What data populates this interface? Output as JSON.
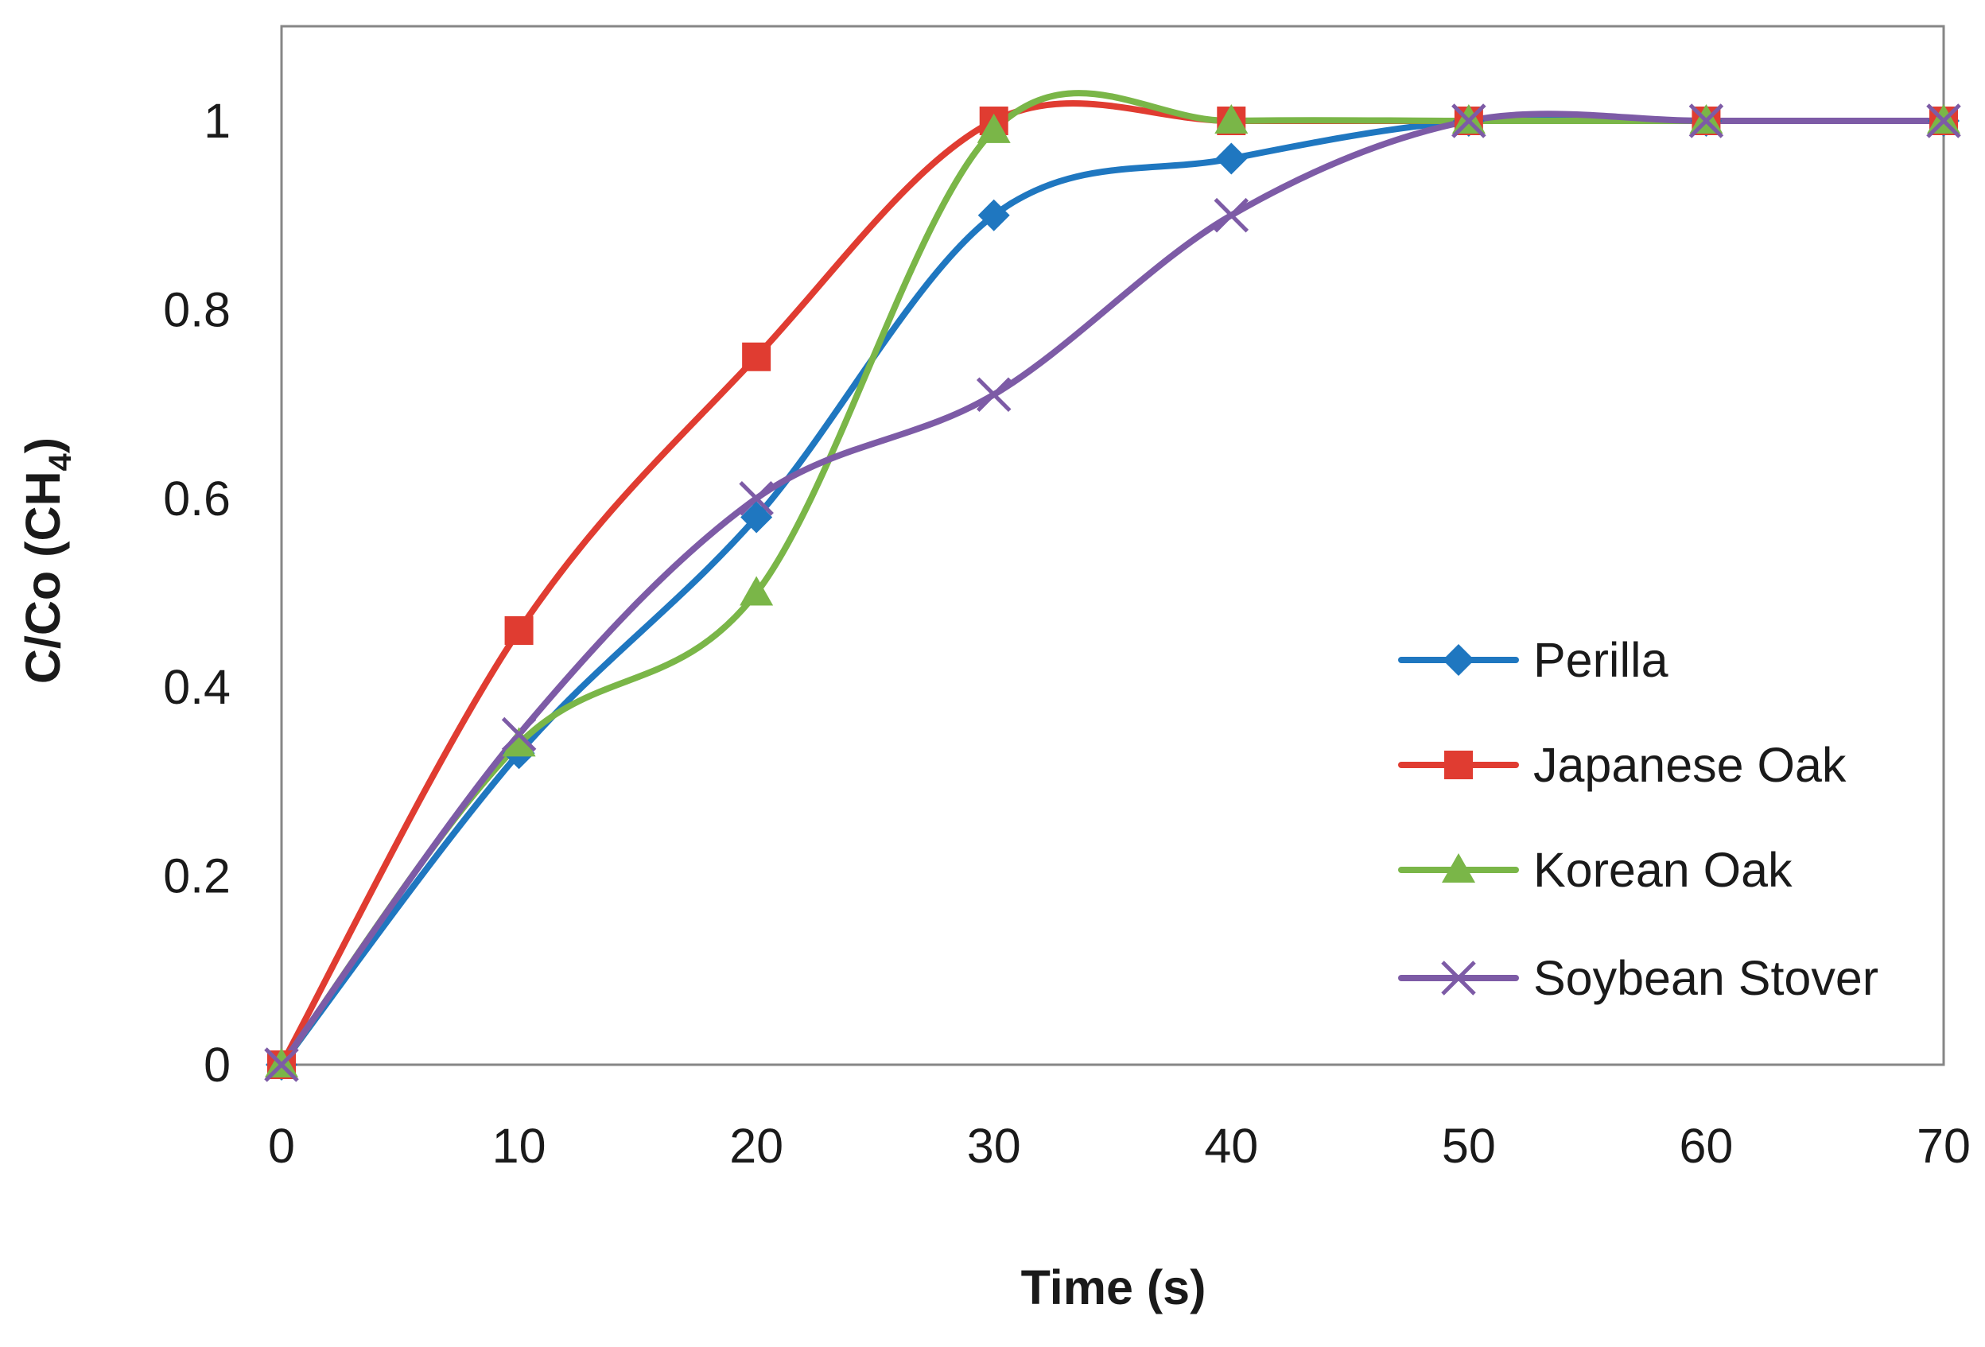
{
  "chart_data": {
    "type": "line",
    "smooth": true,
    "title": "",
    "xlabel": "Time (s)",
    "ylabel": "C/Co  (CH",
    "ylabel_subscript": "4",
    "ylabel_close": ")",
    "xlim": [
      0,
      70
    ],
    "ylim": [
      0,
      1.1
    ],
    "xticks": [
      0,
      10,
      20,
      30,
      40,
      50,
      60,
      70
    ],
    "yticks": [
      0,
      0.2,
      0.4,
      0.6,
      0.8,
      1
    ],
    "xtick_labels": [
      "0",
      "10",
      "20",
      "30",
      "40",
      "50",
      "60",
      "70"
    ],
    "ytick_labels": [
      "0",
      "0.2",
      "0.4",
      "0.6",
      "0.8",
      "1"
    ],
    "grid": false,
    "legend_position": "right",
    "x": [
      0,
      10,
      20,
      30,
      40,
      50,
      60,
      70
    ],
    "series": [
      {
        "name": "Perilla",
        "color": "#1f77c0",
        "marker": "diamond",
        "values": [
          0,
          0.33,
          0.58,
          0.9,
          0.96,
          1,
          1,
          1
        ]
      },
      {
        "name": "Japanese Oak",
        "color": "#e03c31",
        "marker": "square",
        "values": [
          0,
          0.46,
          0.75,
          1,
          1,
          1,
          1,
          1
        ]
      },
      {
        "name": "Korean Oak",
        "color": "#7ab648",
        "marker": "triangle",
        "values": [
          0,
          0.34,
          0.5,
          0.99,
          1,
          1,
          1,
          1
        ]
      },
      {
        "name": "Soybean Stover",
        "color": "#7d5ba6",
        "marker": "x",
        "values": [
          0,
          0.35,
          0.6,
          0.71,
          0.9,
          1,
          1,
          1
        ]
      }
    ]
  }
}
